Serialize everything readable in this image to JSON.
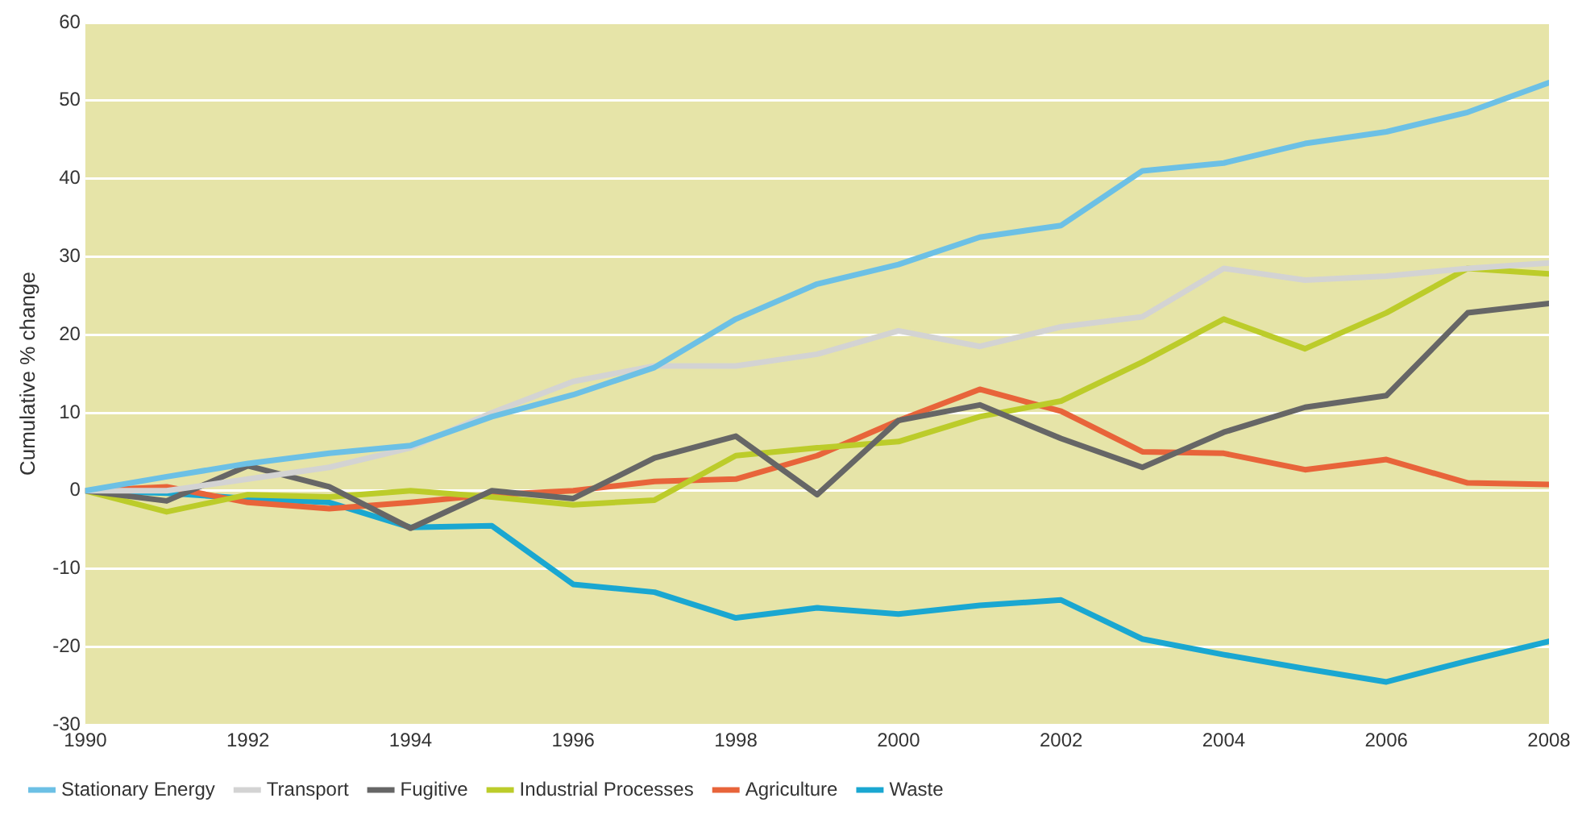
{
  "chart_data": {
    "type": "line",
    "ylabel": "Cumulative % change",
    "x": [
      1990,
      1991,
      1992,
      1993,
      1994,
      1995,
      1996,
      1997,
      1998,
      1999,
      2000,
      2001,
      2002,
      2003,
      2004,
      2005,
      2006,
      2007,
      2008
    ],
    "xlim": [
      1990,
      2008
    ],
    "xticks": [
      1990,
      1992,
      1994,
      1996,
      1998,
      2000,
      2002,
      2004,
      2006,
      2008
    ],
    "ylim": [
      -30,
      60
    ],
    "yticks": [
      -30,
      -20,
      -10,
      0,
      10,
      20,
      30,
      40,
      50,
      60
    ],
    "grid": "y",
    "legend": "bottom",
    "marker": "none",
    "line_style": "solid",
    "series": [
      {
        "name": "Stationary Energy",
        "color": "#6cc0e5",
        "values": [
          0,
          1.8,
          3.5,
          4.8,
          5.8,
          9.5,
          12.3,
          15.8,
          22,
          26.5,
          29,
          32.5,
          34,
          41,
          42,
          44.5,
          46,
          48.5,
          52.3
        ]
      },
      {
        "name": "Transport",
        "color": "#d3d3d3",
        "values": [
          0,
          0,
          1.5,
          3,
          5.5,
          10,
          14,
          16,
          16,
          17.5,
          20.5,
          18.5,
          21,
          22.3,
          28.5,
          27,
          27.5,
          28.5,
          29.2
        ]
      },
      {
        "name": "Fugitive",
        "color": "#666666",
        "values": [
          0,
          -1.3,
          3.2,
          0.5,
          -4.8,
          0,
          -1,
          4.2,
          7,
          -0.5,
          9,
          11,
          6.7,
          3,
          7.5,
          10.7,
          12.2,
          22.8,
          24
        ]
      },
      {
        "name": "Industrial Processes",
        "color": "#bccc2a",
        "values": [
          0,
          -2.7,
          -0.5,
          -0.8,
          0,
          -0.8,
          -1.8,
          -1.2,
          4.5,
          5.5,
          6.3,
          9.5,
          11.5,
          16.5,
          22,
          18.2,
          22.8,
          28.5,
          27.8
        ]
      },
      {
        "name": "Agriculture",
        "color": "#e8643a",
        "values": [
          0,
          0.5,
          -1.5,
          -2.3,
          -1.5,
          -0.5,
          0,
          1.2,
          1.5,
          4.5,
          9,
          13,
          10.2,
          5,
          4.8,
          2.7,
          4,
          1,
          0.8
        ]
      },
      {
        "name": "Waste",
        "color": "#1aa7d1",
        "values": [
          0,
          -0.3,
          -1,
          -1.5,
          -4.7,
          -4.5,
          -12,
          -13,
          -16.3,
          -15,
          -15.8,
          -14.7,
          -14,
          -19,
          -21,
          -22.8,
          -24.5,
          -21.8,
          -19.3
        ]
      }
    ]
  }
}
